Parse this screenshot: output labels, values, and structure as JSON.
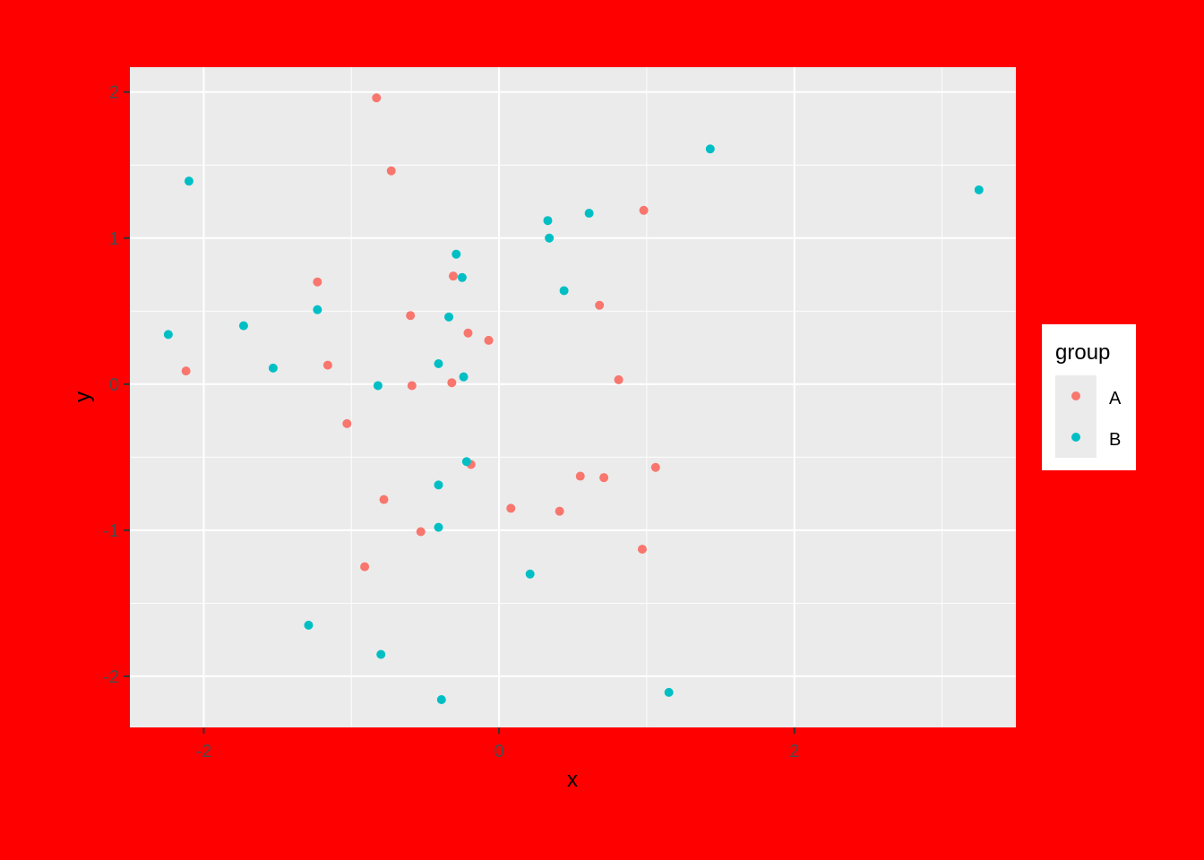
{
  "chart_data": {
    "type": "scatter",
    "title": "",
    "xlabel": "x",
    "ylabel": "y",
    "xlim": [
      -2.5,
      3.5
    ],
    "ylim": [
      -2.35,
      2.17
    ],
    "x_ticks": [
      -2,
      0,
      2
    ],
    "y_ticks": [
      -2,
      -1,
      0,
      1,
      2
    ],
    "x_tick_labels": [
      "-2",
      "0",
      "2"
    ],
    "y_tick_labels": [
      "-2",
      "-1",
      "0",
      "1",
      "2"
    ],
    "grid": true,
    "legend": {
      "title": "group",
      "placement": "right"
    },
    "colors": {
      "outer_background": "#FF0000",
      "panel_background": "#EBEBEB",
      "grid": "#FFFFFF",
      "A": "#F8766D",
      "B": "#00BFC4"
    },
    "series": [
      {
        "name": "A",
        "color": "#F8766D",
        "points": [
          [
            -0.83,
            1.96
          ],
          [
            -0.73,
            1.46
          ],
          [
            0.98,
            1.19
          ],
          [
            -1.23,
            0.7
          ],
          [
            -0.31,
            0.74
          ],
          [
            0.68,
            0.54
          ],
          [
            -0.6,
            0.47
          ],
          [
            -0.21,
            0.35
          ],
          [
            -0.07,
            0.3
          ],
          [
            -1.16,
            0.13
          ],
          [
            -2.12,
            0.09
          ],
          [
            -0.59,
            -0.01
          ],
          [
            -0.32,
            0.01
          ],
          [
            0.81,
            0.03
          ],
          [
            -1.03,
            -0.27
          ],
          [
            -0.19,
            -0.55
          ],
          [
            1.06,
            -0.57
          ],
          [
            0.55,
            -0.63
          ],
          [
            0.71,
            -0.64
          ],
          [
            -0.78,
            -0.79
          ],
          [
            0.08,
            -0.85
          ],
          [
            0.41,
            -0.87
          ],
          [
            -0.53,
            -1.01
          ],
          [
            -0.91,
            -1.25
          ],
          [
            0.97,
            -1.13
          ]
        ]
      },
      {
        "name": "B",
        "color": "#00BFC4",
        "points": [
          [
            -2.1,
            1.39
          ],
          [
            1.43,
            1.61
          ],
          [
            3.25,
            1.33
          ],
          [
            0.33,
            1.12
          ],
          [
            0.61,
            1.17
          ],
          [
            0.34,
            1.0
          ],
          [
            -0.29,
            0.89
          ],
          [
            -0.25,
            0.73
          ],
          [
            0.44,
            0.64
          ],
          [
            -1.23,
            0.51
          ],
          [
            -0.34,
            0.46
          ],
          [
            -1.73,
            0.4
          ],
          [
            -2.24,
            0.34
          ],
          [
            -1.53,
            0.11
          ],
          [
            -0.41,
            0.14
          ],
          [
            -0.24,
            0.05
          ],
          [
            -0.82,
            -0.01
          ],
          [
            -0.22,
            -0.53
          ],
          [
            -0.41,
            -0.69
          ],
          [
            -0.41,
            -0.98
          ],
          [
            0.21,
            -1.3
          ],
          [
            -1.29,
            -1.65
          ],
          [
            -0.8,
            -1.85
          ],
          [
            -0.39,
            -2.16
          ],
          [
            1.15,
            -2.11
          ]
        ]
      }
    ]
  }
}
